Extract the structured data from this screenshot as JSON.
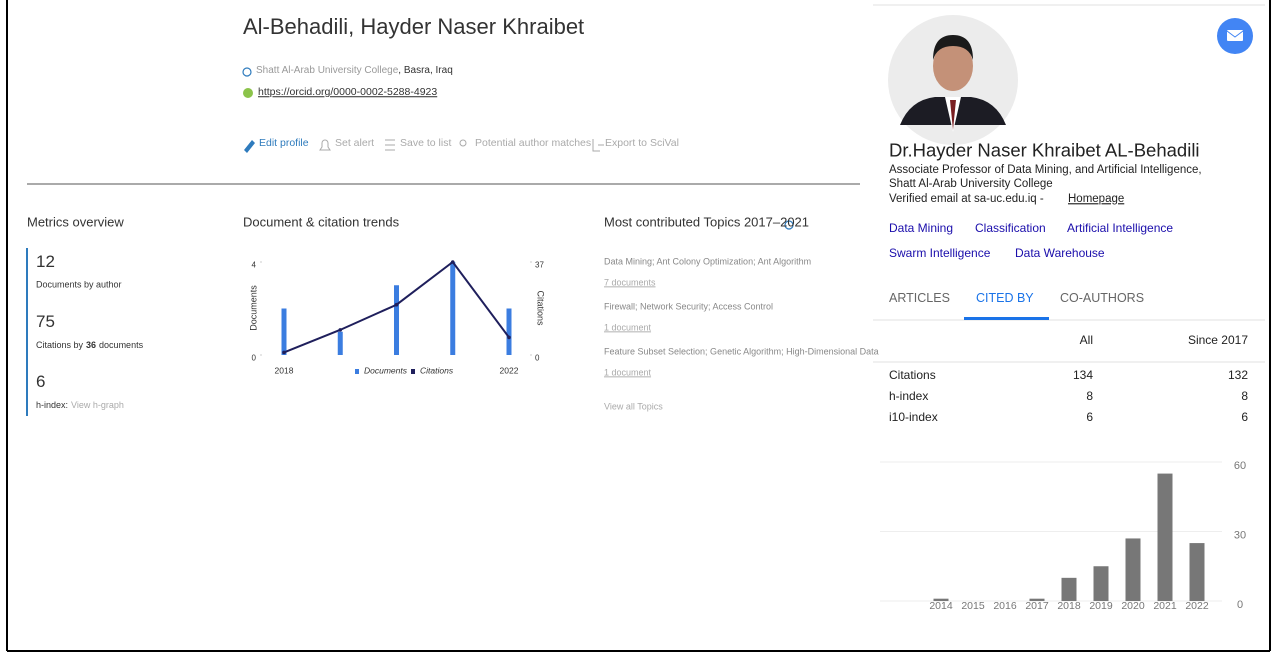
{
  "scopus": {
    "name": "Al-Behadili, Hayder Naser Khraibet",
    "affiliation": "Shatt Al-Arab University College",
    "location": ", Basra, Iraq",
    "orcid": "https://orcid.org/0000-0002-5288-4923",
    "actions": [
      "Edit profile",
      "Set alert",
      "Save to list",
      "Potential author matches",
      "Export to SciVal"
    ],
    "metrics": {
      "title": "Metrics overview",
      "documents": {
        "value": 12,
        "label": "Documents by author"
      },
      "citations": {
        "value": 75,
        "label_before": "Citations by",
        "documents": 36,
        "label_after": "documents"
      },
      "h_index": {
        "value": 6,
        "label": "h-index:",
        "link": "View h-graph"
      }
    },
    "trends": {
      "title": "Document & citation trends",
      "categories": [
        "2018",
        null,
        null,
        null,
        "2022"
      ],
      "series": [
        {
          "name": "Documents",
          "type": "bar",
          "color": "#3b7de0",
          "values": [
            2,
            1,
            3,
            4,
            2
          ]
        },
        {
          "name": "Citations",
          "type": "line",
          "axis": "y2",
          "color": "#1f1f5c",
          "values": [
            1,
            10,
            20,
            37,
            7
          ]
        }
      ],
      "ylabel": "Documents",
      "y2label": "Citations",
      "ylim": [
        0,
        4
      ],
      "yticks": [
        0,
        4
      ],
      "y2lim": [
        0,
        37
      ],
      "y2ticks": [
        0,
        37
      ]
    },
    "topics": {
      "title": "Most contributed Topics 2017–2021",
      "items": [
        {
          "name": "Data Mining; Ant Colony Optimization; Ant Algorithm",
          "count": "7 documents"
        },
        {
          "name": "Firewall; Network Security; Access Control",
          "count": "1 document"
        },
        {
          "name": "Feature Subset Selection; Genetic Algorithm; High-Dimensional Data",
          "count": "1 document"
        }
      ],
      "view_all": "View all Topics"
    }
  },
  "scholar": {
    "name": "Dr.Hayder Naser Khraibet AL-Behadili",
    "position": [
      "Associate Professor of Data Mining, and Artificial Intelligence,",
      "Shatt Al-Arab University College"
    ],
    "email": "Verified email at sa-uc.edu.iq -",
    "homepage": "Homepage",
    "interests": [
      "Data Mining",
      "Classification",
      "Artificial Intelligence",
      "Swarm Intelligence",
      "Data Warehouse"
    ],
    "tabs": [
      "ARTICLES",
      "CITED BY",
      "CO-AUTHORS"
    ],
    "stats": {
      "headers": [
        "All",
        "Since 2017"
      ],
      "rows": [
        [
          "Citations",
          134,
          132
        ],
        [
          "h-index",
          8,
          8
        ],
        [
          "i10-index",
          6,
          6
        ]
      ]
    },
    "cited_by_chart": {
      "type": "bar",
      "categories": [
        "2014",
        "2015",
        "2016",
        "2017",
        "2018",
        "2019",
        "2020",
        "2021",
        "2022"
      ],
      "values": [
        1,
        0,
        0,
        1,
        10,
        15,
        27,
        55,
        25
      ],
      "color": "#777777",
      "ylim": [
        0,
        60
      ],
      "yticks": [
        0,
        30,
        60
      ],
      "grid": true
    }
  }
}
